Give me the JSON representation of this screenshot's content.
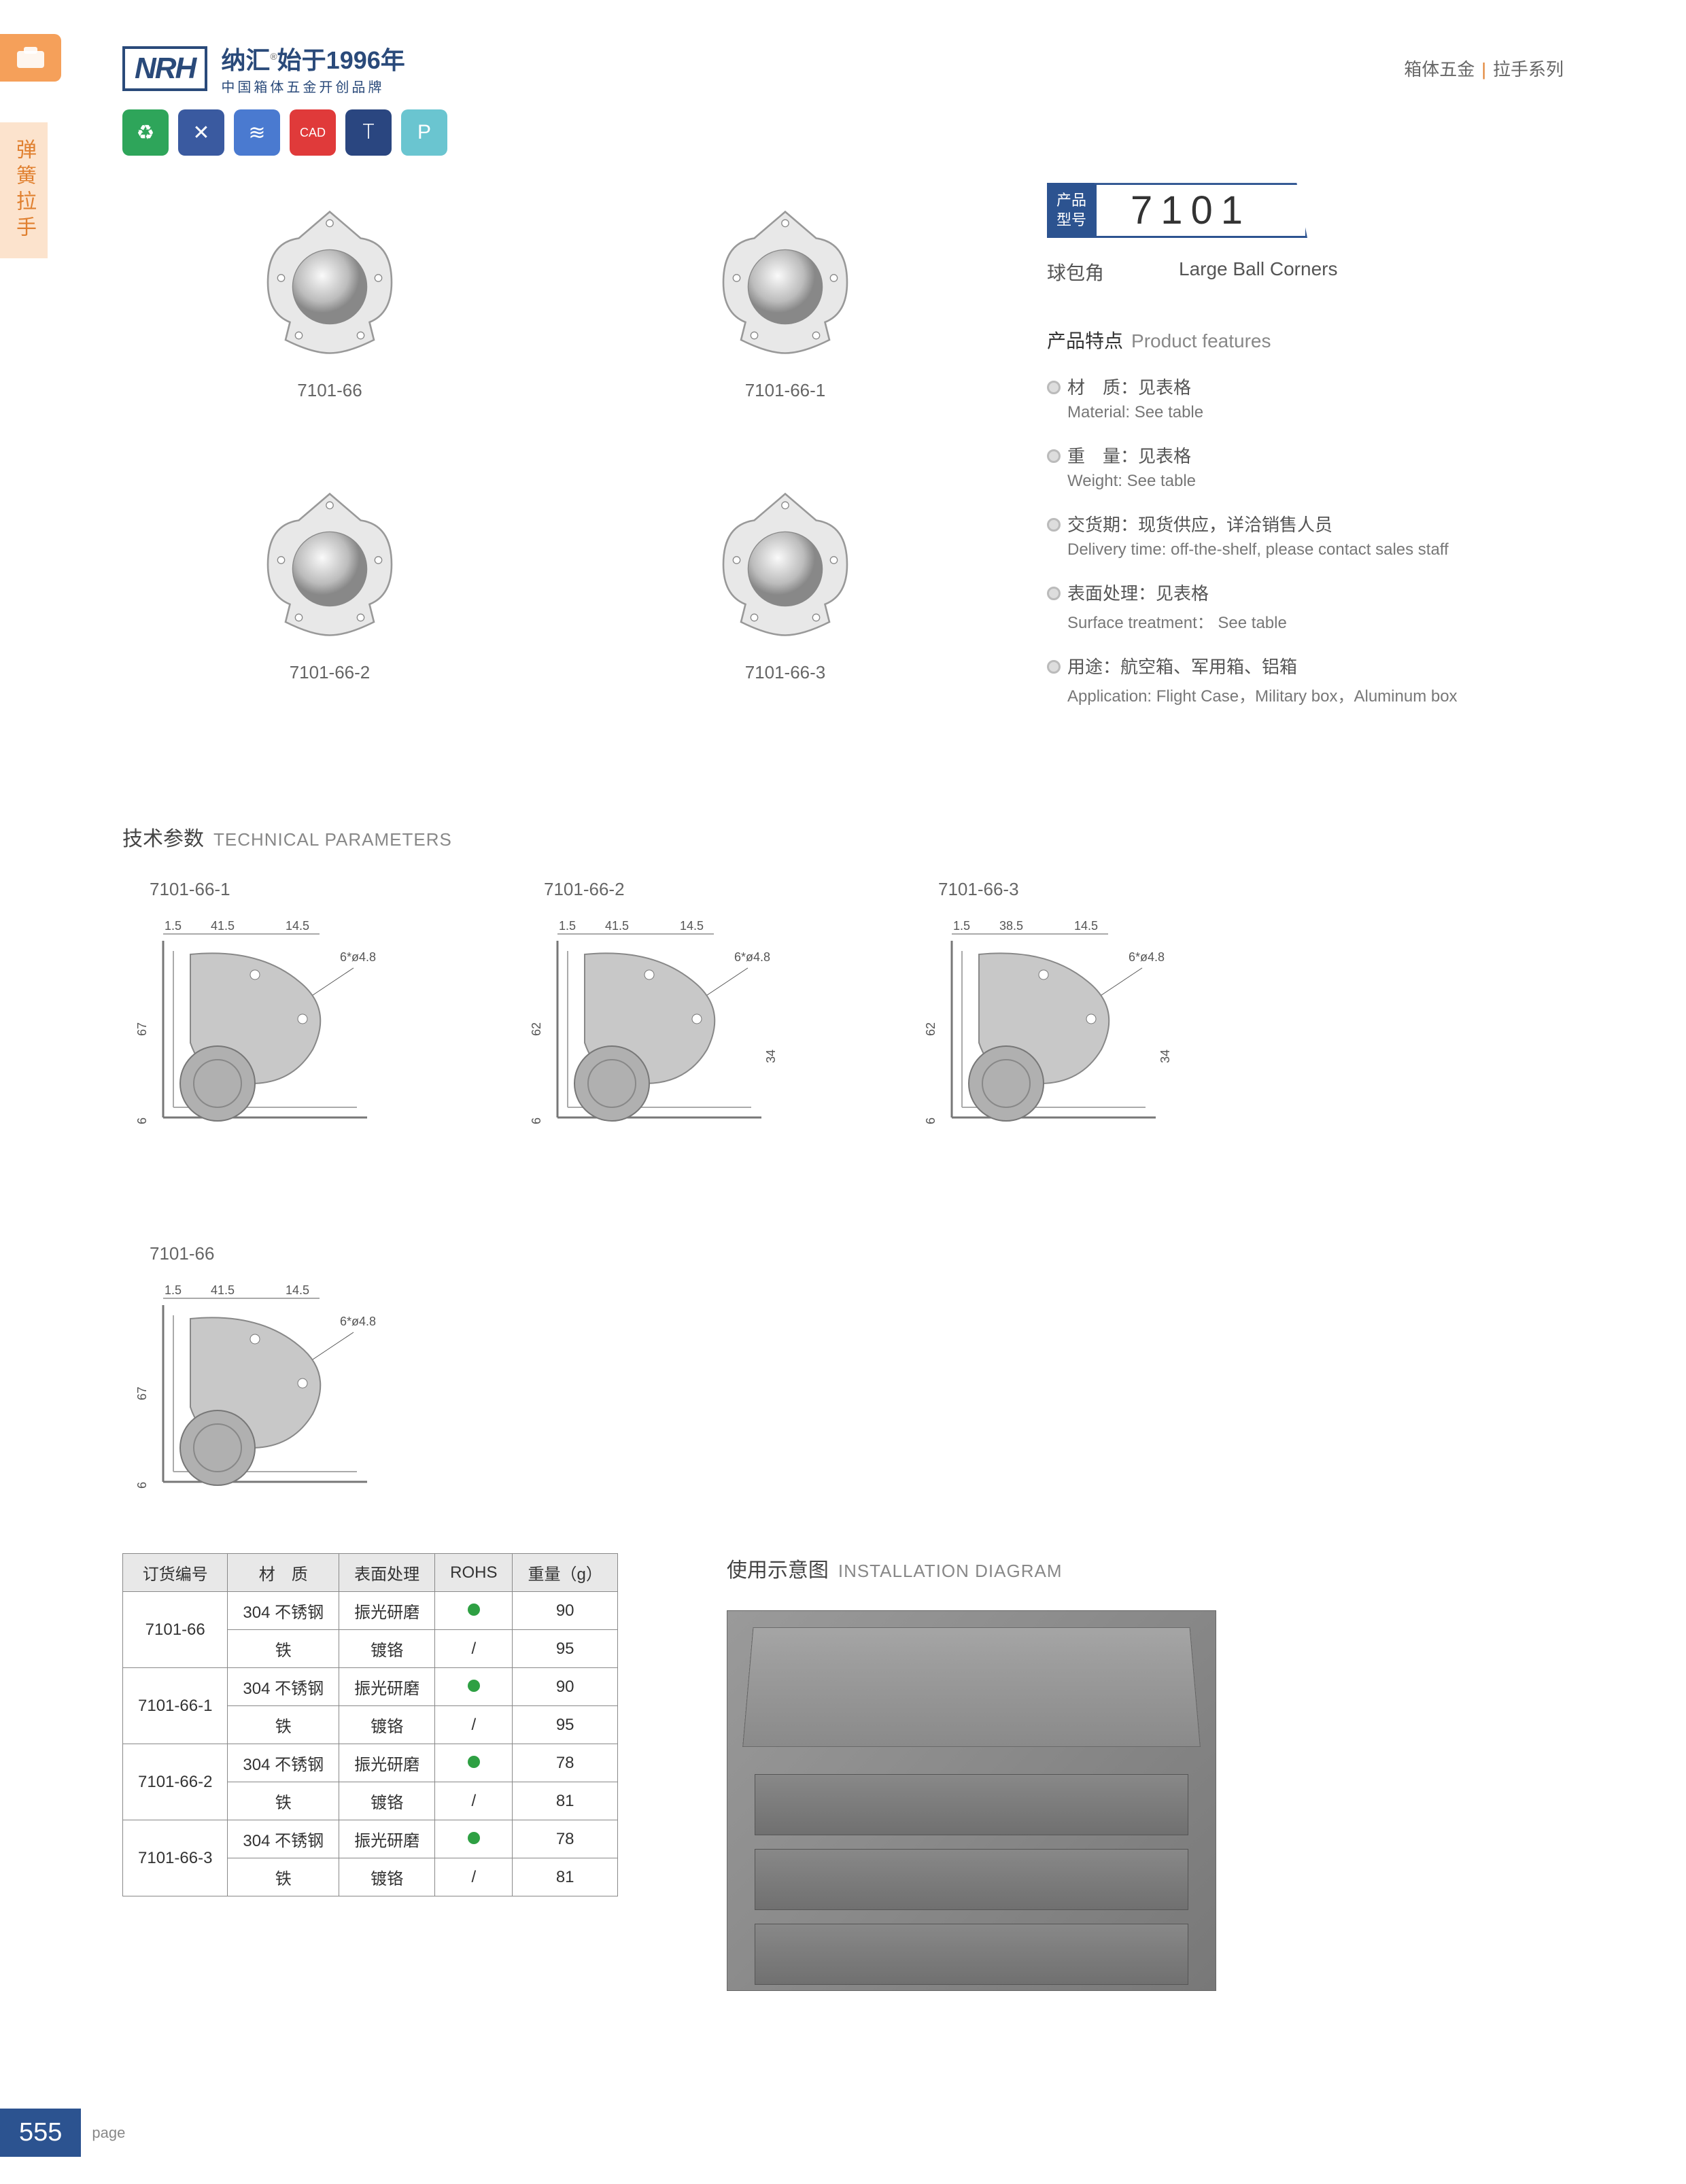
{
  "header": {
    "logo": "NRH",
    "logo_cn": "纳汇",
    "logo_year": "始于1996年",
    "logo_reg": "®",
    "logo_sub": "中国箱体五金开创品牌",
    "right_cat": "箱体五金",
    "right_series": "拉手系列"
  },
  "side_tab": "弹簧拉手",
  "icons": [
    {
      "bg": "#2ea55a",
      "glyph": "♻"
    },
    {
      "bg": "#3a5aa0",
      "glyph": "✕"
    },
    {
      "bg": "#4a7ad0",
      "glyph": "≋"
    },
    {
      "bg": "#e03a3a",
      "glyph": "CAD"
    },
    {
      "bg": "#2a4680",
      "glyph": "⟙"
    },
    {
      "bg": "#6ac5d0",
      "glyph": "P"
    }
  ],
  "products": [
    {
      "label": "7101-66"
    },
    {
      "label": "7101-66-1"
    },
    {
      "label": "7101-66-2"
    },
    {
      "label": "7101-66-3"
    }
  ],
  "model": {
    "tag_l1": "产品",
    "tag_l2": "型号",
    "number": "7101",
    "name_cn": "球包角",
    "name_en": "Large Ball Corners"
  },
  "features_title_cn": "产品特点",
  "features_title_en": "Product features",
  "features": [
    {
      "cn": "材　质：见表格",
      "en": "Material: See table"
    },
    {
      "cn": "重　量：见表格",
      "en": "Weight: See table"
    },
    {
      "cn": "交货期：现货供应，详洽销售人员",
      "en": "Delivery time: off-the-shelf, please contact sales staff"
    },
    {
      "cn": "表面处理：见表格",
      "en": "Surface treatment： See table"
    },
    {
      "cn": "用途：航空箱、军用箱、铝箱",
      "en": "Application: Flight Case，Military box，Aluminum box"
    }
  ],
  "tech_title_cn": "技术参数",
  "tech_title_en": "TECHNICAL PARAMETERS",
  "diagrams": [
    {
      "label": "7101-66-1",
      "d1": "1.5",
      "d2": "41.5",
      "d3": "14.5",
      "hole": "6*ø4.8",
      "h": "67",
      "base": "6",
      "extra": ""
    },
    {
      "label": "7101-66-2",
      "d1": "1.5",
      "d2": "41.5",
      "d3": "14.5",
      "hole": "6*ø4.8",
      "h": "62",
      "base": "6",
      "extra": "34"
    },
    {
      "label": "7101-66-3",
      "d1": "1.5",
      "d2": "38.5",
      "d3": "14.5",
      "hole": "6*ø4.8",
      "h": "62",
      "base": "6",
      "extra": "34"
    },
    {
      "label": "7101-66",
      "d1": "1.5",
      "d2": "41.5",
      "d3": "14.5",
      "hole": "6*ø4.8",
      "h": "67",
      "base": "6",
      "extra": ""
    }
  ],
  "table": {
    "headers": [
      "订货编号",
      "材　质",
      "表面处理",
      "ROHS",
      "重量（g）"
    ],
    "rows": [
      {
        "code": "7101-66",
        "r": [
          [
            "304 不锈钢",
            "振光研磨",
            "dot",
            "90"
          ],
          [
            "铁",
            "镀铬",
            "/",
            "95"
          ]
        ]
      },
      {
        "code": "7101-66-1",
        "r": [
          [
            "304 不锈钢",
            "振光研磨",
            "dot",
            "90"
          ],
          [
            "铁",
            "镀铬",
            "/",
            "95"
          ]
        ]
      },
      {
        "code": "7101-66-2",
        "r": [
          [
            "304 不锈钢",
            "振光研磨",
            "dot",
            "78"
          ],
          [
            "铁",
            "镀铬",
            "/",
            "81"
          ]
        ]
      },
      {
        "code": "7101-66-3",
        "r": [
          [
            "304 不锈钢",
            "振光研磨",
            "dot",
            "78"
          ],
          [
            "铁",
            "镀铬",
            "/",
            "81"
          ]
        ]
      }
    ]
  },
  "install_title_cn": "使用示意图",
  "install_title_en": "INSTALLATION DIAGRAM",
  "page_number": "555",
  "page_label": "page"
}
